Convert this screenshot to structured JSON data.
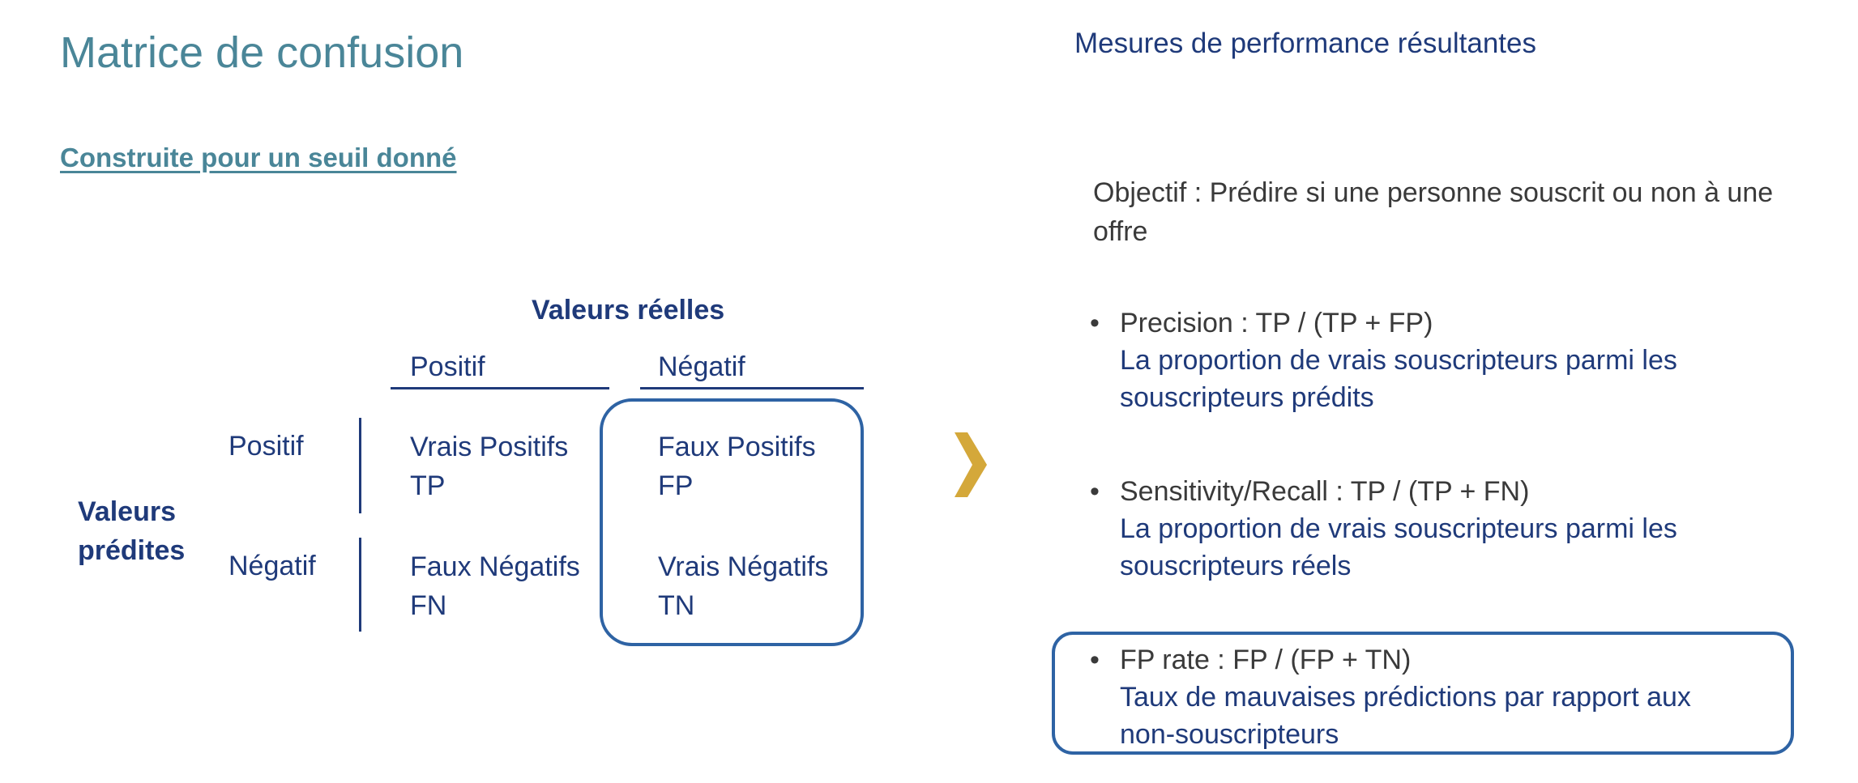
{
  "left": {
    "title": "Matrice de confusion",
    "subtitle": "Construite pour un seuil donné"
  },
  "matrix": {
    "actual_label": "Valeurs réelles",
    "col_positive": "Positif",
    "col_negative": "Négatif",
    "predicted_label_line1": "Valeurs",
    "predicted_label_line2": "prédites",
    "row_positive": "Positif",
    "row_negative": "Négatif",
    "cells": {
      "tp": {
        "name": "Vrais Positifs",
        "abbr": "TP"
      },
      "fp": {
        "name": "Faux Positifs",
        "abbr": "FP"
      },
      "fn": {
        "name": "Faux Négatifs",
        "abbr": "FN"
      },
      "tn": {
        "name": "Vrais Négatifs",
        "abbr": "TN"
      }
    }
  },
  "right": {
    "title": "Mesures de performance résultantes",
    "objective": "Objectif : Prédire si une personne souscrit ou non à une offre",
    "metrics": [
      {
        "formula": "Precision : TP / (TP + FP)",
        "desc_line1": "La proportion de vrais souscripteurs parmi les",
        "desc_line2": "souscripteurs prédits"
      },
      {
        "formula": "Sensitivity/Recall : TP / (TP + FN)",
        "desc_line1": "La proportion de vrais souscripteurs parmi les",
        "desc_line2": "souscripteurs réels"
      },
      {
        "formula": "FP rate : FP / (FP + TN)",
        "desc_line1": "Taux de mauvaises prédictions par rapport aux",
        "desc_line2": "non-souscripteurs"
      }
    ]
  },
  "colors": {
    "teal": "#4a8698",
    "navy": "#1f3a7a",
    "frame_blue": "#2e63a4",
    "chevron_gold": "#d4a83a",
    "gray_text": "#3a3a3a"
  },
  "icons": {
    "arrow": "chevron-right-icon",
    "bullet": "bullet-dot-icon"
  }
}
